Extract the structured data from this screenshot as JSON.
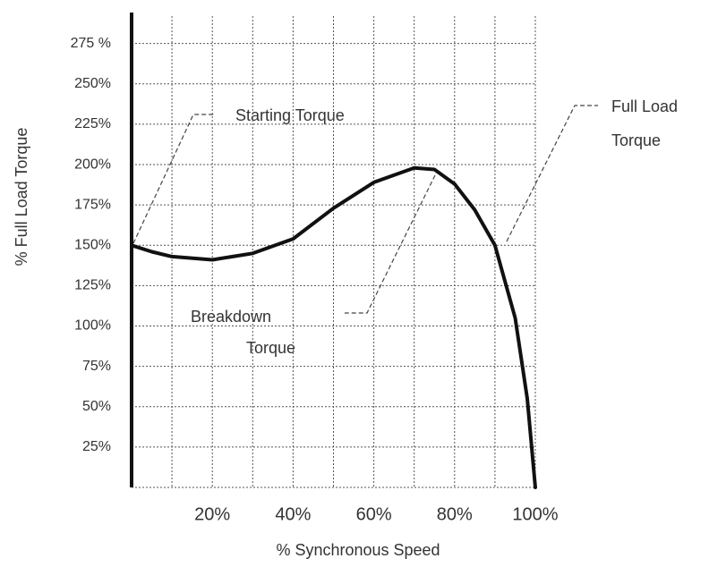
{
  "chart_data": {
    "type": "line",
    "x_label": "% Synchronous Speed",
    "y_label": "% Full Load Torque",
    "x": [
      0,
      5,
      10,
      20,
      30,
      40,
      50,
      60,
      70,
      75,
      80,
      85,
      90,
      95,
      98,
      100
    ],
    "series": [
      {
        "color": "#111111",
        "values": [
          150,
          146,
          143,
          141,
          145,
          154,
          173,
          189,
          198,
          197,
          188,
          172,
          150,
          105,
          55,
          0
        ]
      }
    ],
    "xlim": [
      0,
      100
    ],
    "ylim": [
      0,
      292
    ],
    "xticks": [
      {
        "value": 20,
        "label": "20%"
      },
      {
        "value": 40,
        "label": "40%"
      },
      {
        "value": 60,
        "label": "60%"
      },
      {
        "value": 80,
        "label": "80%"
      },
      {
        "value": 100,
        "label": "100%"
      }
    ],
    "xminor": [
      10,
      30,
      50,
      70,
      90
    ],
    "yticks": [
      {
        "value": 25,
        "label": "25%"
      },
      {
        "value": 50,
        "label": "50%"
      },
      {
        "value": 75,
        "label": "75%"
      },
      {
        "value": 100,
        "label": "100%"
      },
      {
        "value": 125,
        "label": "125%"
      },
      {
        "value": 150,
        "label": "150%"
      },
      {
        "value": 175,
        "label": "175%"
      },
      {
        "value": 200,
        "label": "200%"
      },
      {
        "value": 225,
        "label": "225%"
      },
      {
        "value": 250,
        "label": "250%"
      },
      {
        "value": 275,
        "label": "275 %"
      }
    ],
    "grid": true,
    "annotations": [
      [
        "Starting Torque"
      ],
      [
        "Full Load",
        "Torque"
      ],
      [
        "Breakdown",
        "Torque"
      ]
    ]
  }
}
